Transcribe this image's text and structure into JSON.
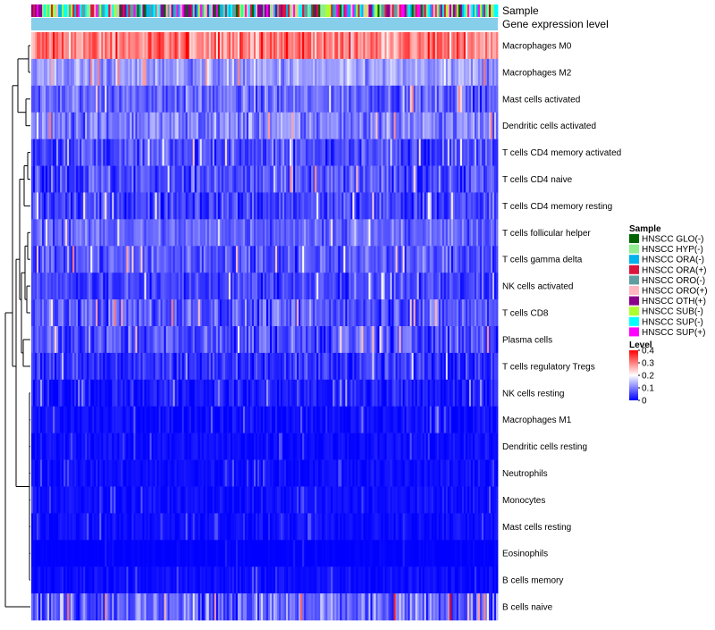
{
  "chart_data": {
    "type": "heatmap",
    "track_labels": {
      "sample": "Sample",
      "expression": "Gene expression level"
    },
    "rows": [
      {
        "label": "Macrophages M0",
        "mean": 0.3,
        "spread": 0.09
      },
      {
        "label": "Macrophages M2",
        "mean": 0.12,
        "spread": 0.06
      },
      {
        "label": "Mast cells activated",
        "mean": 0.08,
        "spread": 0.06
      },
      {
        "label": "Dendritic cells activated",
        "mean": 0.1,
        "spread": 0.07
      },
      {
        "label": "T cells CD4 memory activated",
        "mean": 0.06,
        "spread": 0.06
      },
      {
        "label": "T cells CD4 naive",
        "mean": 0.06,
        "spread": 0.07
      },
      {
        "label": "T cells CD4 memory resting",
        "mean": 0.05,
        "spread": 0.06
      },
      {
        "label": "T cells follicular helper",
        "mean": 0.08,
        "spread": 0.05
      },
      {
        "label": "T cells gamma delta",
        "mean": 0.07,
        "spread": 0.06
      },
      {
        "label": "NK cells activated",
        "mean": 0.05,
        "spread": 0.05
      },
      {
        "label": "T cells CD8",
        "mean": 0.07,
        "spread": 0.07
      },
      {
        "label": "Plasma cells",
        "mean": 0.06,
        "spread": 0.07
      },
      {
        "label": "T cells regulatory  Tregs",
        "mean": 0.04,
        "spread": 0.05
      },
      {
        "label": "NK cells resting",
        "mean": 0.02,
        "spread": 0.04
      },
      {
        "label": "Macrophages M1",
        "mean": 0.01,
        "spread": 0.03
      },
      {
        "label": "Dendritic cells resting",
        "mean": 0.01,
        "spread": 0.02
      },
      {
        "label": "Neutrophils",
        "mean": 0.01,
        "spread": 0.02
      },
      {
        "label": "Monocytes",
        "mean": 0.01,
        "spread": 0.02
      },
      {
        "label": "Mast cells resting",
        "mean": 0.01,
        "spread": 0.02
      },
      {
        "label": "Eosinophils",
        "mean": 0.0,
        "spread": 0.01
      },
      {
        "label": "B cells memory",
        "mean": 0.01,
        "spread": 0.02
      },
      {
        "label": "B cells naive",
        "mean": 0.08,
        "spread": 0.09
      }
    ],
    "columns_count": 260,
    "color_scale": {
      "min": 0,
      "max": 0.4,
      "stops": [
        "#0000ff",
        "#ffffff",
        "#ff0000"
      ],
      "mid": 0.2
    },
    "sample_groups": [
      {
        "name": "HNSCC GLO(-)",
        "color": "#006400"
      },
      {
        "name": "HNSCC HYP(-)",
        "color": "#90ee90"
      },
      {
        "name": "HNSCC ORA(-)",
        "color": "#00b2ee"
      },
      {
        "name": "HNSCC ORA(+)",
        "color": "#dc143c"
      },
      {
        "name": "HNSCC ORO(-)",
        "color": "#5f9ea0"
      },
      {
        "name": "HNSCC ORO(+)",
        "color": "#ffb6c1"
      },
      {
        "name": "HNSCC OTH(+)",
        "color": "#8b008b"
      },
      {
        "name": "HNSCC SUB(-)",
        "color": "#adff2f"
      },
      {
        "name": "HNSCC SUP(-)",
        "color": "#00ffff"
      },
      {
        "name": "HNSCC SUP(+)",
        "color": "#ff00ff"
      }
    ],
    "sample_legend_title": "Sample",
    "level_legend_title": "Level",
    "level_ticks": [
      {
        "value": 0.4,
        "label": "0.4"
      },
      {
        "value": 0.3,
        "label": "0.3"
      },
      {
        "value": 0.2,
        "label": "0.2"
      },
      {
        "value": 0.1,
        "label": "0.1"
      },
      {
        "value": 0,
        "label": "0"
      }
    ],
    "expression_track_color": "#87ceeb"
  }
}
